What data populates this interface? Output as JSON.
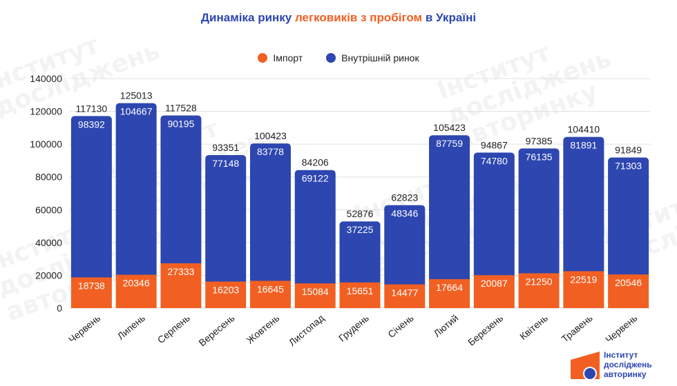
{
  "title": {
    "part1": "Динаміка ринку ",
    "part2": "легковиків з пробігом",
    "part3": " в Україні"
  },
  "legend": {
    "import_label": "Імпорт",
    "domestic_label": "Внутрішній ринок"
  },
  "colors": {
    "import": "#f16022",
    "domestic": "#2d46b0",
    "title": "#2d46b0",
    "accent": "#f16022"
  },
  "brand": {
    "line1": "Інститут",
    "line2": "досліджень",
    "line3": "авторинку"
  },
  "chart_data": {
    "type": "bar",
    "stacked": true,
    "title": "Динаміка ринку легковиків з пробігом в Україні",
    "categories": [
      "Червень",
      "Липень",
      "Серпень",
      "Вересень",
      "Жовтень",
      "Листопад",
      "Грудень",
      "Січень",
      "Лютий",
      "Березень",
      "Квітень",
      "Травень",
      "Червень"
    ],
    "series": [
      {
        "name": "Імпорт",
        "values": [
          18738,
          20346,
          27333,
          16203,
          16645,
          15084,
          15651,
          14477,
          17664,
          20087,
          21250,
          22519,
          20546
        ]
      },
      {
        "name": "Внутрішній ринок",
        "values": [
          98392,
          104667,
          90195,
          77148,
          83778,
          69122,
          37225,
          48346,
          87759,
          74780,
          76135,
          81891,
          71303
        ]
      }
    ],
    "totals": [
      117130,
      125013,
      117528,
      93351,
      100423,
      84206,
      52876,
      62823,
      105423,
      94867,
      97385,
      104410,
      91849
    ],
    "ylim": [
      0,
      140000
    ],
    "yticks": [
      0,
      20000,
      40000,
      60000,
      80000,
      100000,
      120000,
      140000
    ],
    "grid": true,
    "legend_position": "top-center"
  }
}
